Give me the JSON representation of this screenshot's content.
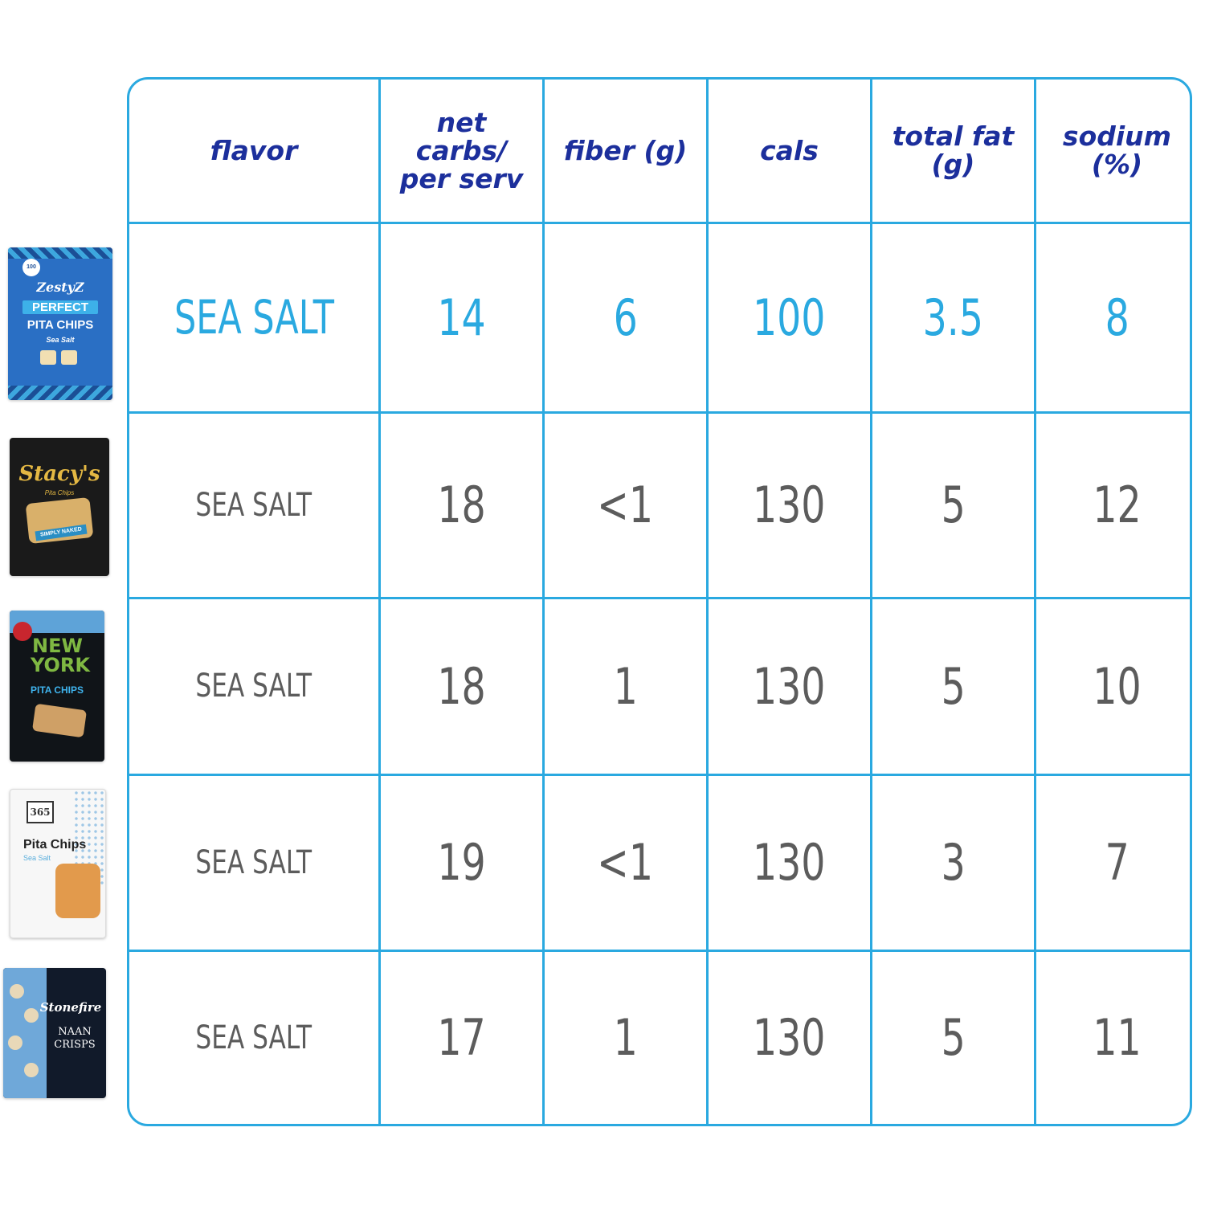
{
  "colors": {
    "accent": "#2aa9e0",
    "header_text": "#1c2f9c",
    "body_text": "#5c5c5c"
  },
  "headers": {
    "flavor": "flavor",
    "net_carbs": [
      "net",
      "carbs/",
      "per serv"
    ],
    "fiber": "fiber (g)",
    "cals": "cals",
    "total_fat": [
      "total fat",
      "(g)"
    ],
    "sodium": [
      "sodium",
      "(%)"
    ]
  },
  "products": [
    {
      "brand": "ZestyZ",
      "line1": "PERFECT",
      "line2": "PITA CHIPS",
      "line3": "Sea Salt",
      "badge": "100"
    },
    {
      "brand": "Stacy's",
      "line1": "Pita Chips",
      "line2": "SIMPLY NAKED"
    },
    {
      "line1": "NEW",
      "line2": "YORK",
      "line3": "PITA CHIPS"
    },
    {
      "brand": "365",
      "line1": "Pita Chips",
      "line2": "Sea Salt"
    },
    {
      "brand": "Stonefire",
      "line1": "NAAN",
      "line2": "CRISPS"
    }
  ],
  "rows": [
    {
      "flavor": "SEA SALT",
      "net_carbs": "14",
      "fiber": "6",
      "cals": "100",
      "total_fat": "3.5",
      "sodium": "8",
      "highlight": true
    },
    {
      "flavor": "SEA SALT",
      "net_carbs": "18",
      "fiber": "<1",
      "cals": "130",
      "total_fat": "5",
      "sodium": "12"
    },
    {
      "flavor": "SEA SALT",
      "net_carbs": "18",
      "fiber": "1",
      "cals": "130",
      "total_fat": "5",
      "sodium": "10"
    },
    {
      "flavor": "SEA SALT",
      "net_carbs": "19",
      "fiber": "<1",
      "cals": "130",
      "total_fat": "3",
      "sodium": "7"
    },
    {
      "flavor": "SEA SALT",
      "net_carbs": "17",
      "fiber": "1",
      "cals": "130",
      "total_fat": "5",
      "sodium": "11"
    }
  ]
}
